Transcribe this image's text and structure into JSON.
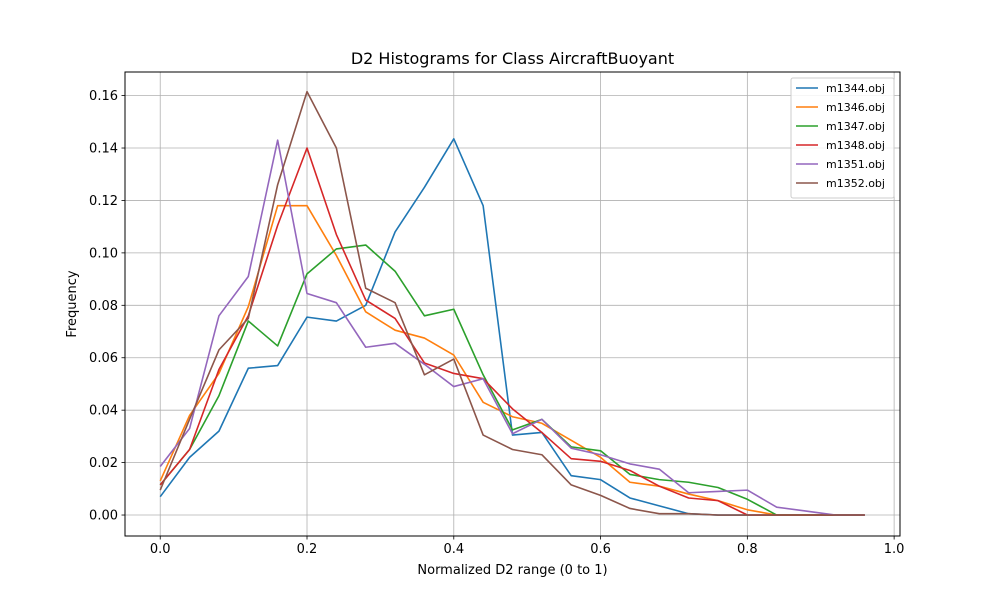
{
  "chart_data": {
    "type": "line",
    "title": "D2 Histograms for Class AircraftBuoyant",
    "xlabel": "Normalized D2 range (0 to 1)",
    "ylabel": "Frequency",
    "xlim": [
      -0.048,
      1.008
    ],
    "ylim": [
      -0.008,
      0.169
    ],
    "xticks": [
      0.0,
      0.2,
      0.4,
      0.6,
      0.8,
      1.0
    ],
    "xtick_labels": [
      "0.0",
      "0.2",
      "0.4",
      "0.6",
      "0.8",
      "1.0"
    ],
    "yticks": [
      0.0,
      0.02,
      0.04,
      0.06,
      0.08,
      0.1,
      0.12,
      0.14,
      0.16
    ],
    "ytick_labels": [
      "0.00",
      "0.02",
      "0.04",
      "0.06",
      "0.08",
      "0.10",
      "0.12",
      "0.14",
      "0.16"
    ],
    "grid": true,
    "legend_position": "top-right",
    "x": [
      0.0,
      0.04,
      0.08,
      0.12,
      0.16,
      0.2,
      0.24,
      0.28,
      0.32,
      0.36,
      0.4,
      0.44,
      0.48,
      0.52,
      0.56,
      0.6,
      0.64,
      0.68,
      0.72,
      0.76,
      0.8,
      0.84,
      0.88,
      0.92,
      0.96
    ],
    "series": [
      {
        "name": "m1344.obj",
        "color": "#1f77b4",
        "values": [
          0.007,
          0.022,
          0.032,
          0.056,
          0.057,
          0.0755,
          0.074,
          0.08,
          0.108,
          0.125,
          0.1435,
          0.118,
          0.0305,
          0.0315,
          0.015,
          0.0135,
          0.0065,
          0.0035,
          0.0005,
          0.0,
          0.0,
          0.0,
          0.0,
          0.0,
          0.0
        ]
      },
      {
        "name": "m1346.obj",
        "color": "#ff7f0e",
        "values": [
          0.013,
          0.038,
          0.054,
          0.0795,
          0.118,
          0.118,
          0.099,
          0.0775,
          0.0705,
          0.0675,
          0.061,
          0.043,
          0.0375,
          0.035,
          0.0285,
          0.022,
          0.0125,
          0.011,
          0.008,
          0.0055,
          0.002,
          0.0,
          0.0,
          0.0,
          0.0
        ]
      },
      {
        "name": "m1347.obj",
        "color": "#2ca02c",
        "values": [
          0.0115,
          0.025,
          0.0455,
          0.074,
          0.0645,
          0.092,
          0.1015,
          0.103,
          0.093,
          0.076,
          0.0785,
          0.0535,
          0.0325,
          0.0365,
          0.026,
          0.0245,
          0.0155,
          0.0135,
          0.0125,
          0.0105,
          0.006,
          0.0,
          0.0,
          0.0,
          0.0
        ]
      },
      {
        "name": "m1348.obj",
        "color": "#d62728",
        "values": [
          0.0115,
          0.025,
          0.0555,
          0.076,
          0.1105,
          0.14,
          0.107,
          0.082,
          0.075,
          0.058,
          0.054,
          0.052,
          0.0405,
          0.0315,
          0.0215,
          0.0205,
          0.017,
          0.011,
          0.0065,
          0.0055,
          0.0,
          0.0,
          0.0,
          0.0,
          0.0
        ]
      },
      {
        "name": "m1351.obj",
        "color": "#9467bd",
        "values": [
          0.0185,
          0.033,
          0.076,
          0.091,
          0.143,
          0.0845,
          0.081,
          0.064,
          0.0655,
          0.0575,
          0.049,
          0.052,
          0.031,
          0.0365,
          0.0255,
          0.023,
          0.0195,
          0.0175,
          0.0085,
          0.009,
          0.0095,
          0.003,
          0.0015,
          0.0,
          0.0
        ]
      },
      {
        "name": "m1352.obj",
        "color": "#8c564b",
        "values": [
          0.0095,
          0.0365,
          0.063,
          0.075,
          0.126,
          0.1615,
          0.14,
          0.0865,
          0.081,
          0.0535,
          0.0595,
          0.0305,
          0.025,
          0.023,
          0.0115,
          0.0075,
          0.0025,
          0.0005,
          0.0005,
          0.0,
          0.0,
          0.0,
          0.0,
          0.0,
          0.0
        ]
      }
    ]
  }
}
